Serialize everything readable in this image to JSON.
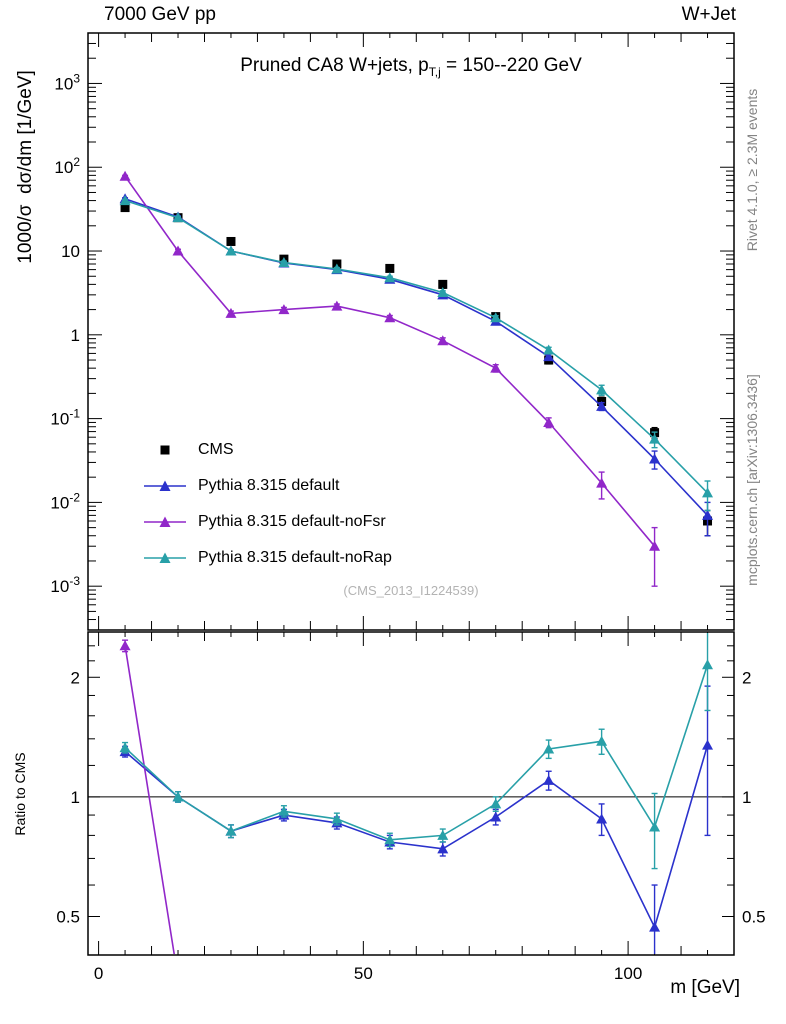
{
  "header": {
    "left": "7000 GeV pp",
    "right": "W+Jet"
  },
  "title": {
    "prefix": "Pruned CA8 W+jets, p",
    "sub": "T,j",
    "suffix": " = 150--220 GeV"
  },
  "axes": {
    "main_ylabel": "1000/σ  dσ/dm [1/GeV]",
    "ratio_ylabel": "Ratio to CMS",
    "xlabel": "m [GeV]"
  },
  "side_notes": {
    "rivet": "Rivet 4.1.0, ≥ 2.3M events",
    "mcplots": "mcplots.cern.ch [arXiv:1306.3436]"
  },
  "watermark": "(CMS_2013_I1224539)",
  "colors": {
    "frame": "#000000",
    "gray_text": "#848484",
    "watermark": "#b3b3b3"
  },
  "chart_data": {
    "type": "line",
    "title": "Pruned CA8 W+jets, p_{T,j} = 150--220 GeV",
    "xlabel": "m [GeV]",
    "x": [
      5,
      15,
      25,
      35,
      45,
      55,
      65,
      75,
      85,
      95,
      105,
      115
    ],
    "xlim": [
      -2,
      120
    ],
    "x_ticks": [
      0,
      50,
      100
    ],
    "main": {
      "scale": "log",
      "ylim": [
        0.0003,
        4000
      ],
      "ylabel": "1000/σ dσ/dm [1/GeV]"
    },
    "ratio": {
      "scale": "log",
      "ylim": [
        0.4,
        2.6
      ],
      "ticks": [
        0.5,
        1,
        2
      ],
      "tick_labels": [
        "0.5",
        "1",
        "2"
      ],
      "minor_ticks": [
        0.6,
        0.7,
        0.8,
        0.9,
        1.2,
        1.4,
        1.6,
        1.8,
        2.2,
        2.4
      ],
      "ylabel": "Ratio to CMS",
      "reference_line": 1
    },
    "series": [
      {
        "name": "CMS",
        "color": "#000000",
        "marker": "square",
        "line": false,
        "values": [
          33,
          25,
          13,
          8.0,
          7.0,
          6.2,
          4.0,
          1.65,
          0.5,
          0.16,
          0.068,
          0.006
        ],
        "errors": [
          3,
          2,
          1,
          0.6,
          0.5,
          0.5,
          0.4,
          0.15,
          0.05,
          0.02,
          0.01,
          0.002
        ]
      },
      {
        "name": "Pythia 8.315 default",
        "color": "#2b32cc",
        "marker": "triangle",
        "line": true,
        "values": [
          42,
          25.5,
          10,
          7.2,
          6.0,
          4.6,
          3.0,
          1.45,
          0.55,
          0.14,
          0.033,
          0.007
        ],
        "errors": [
          1.2,
          0.8,
          0.35,
          0.28,
          0.25,
          0.2,
          0.15,
          0.08,
          0.04,
          0.015,
          0.008,
          0.003
        ],
        "ratio": [
          1.3,
          1.0,
          0.82,
          0.9,
          0.86,
          0.77,
          0.74,
          0.89,
          1.1,
          0.88,
          0.47,
          1.35
        ],
        "ratio_errors": [
          0.04,
          0.03,
          0.03,
          0.03,
          0.03,
          0.03,
          0.03,
          0.04,
          0.06,
          0.08,
          0.13,
          0.55
        ]
      },
      {
        "name": "Pythia 8.315 default-noFsr",
        "color": "#9127c9",
        "marker": "triangle",
        "line": true,
        "values": [
          78,
          10,
          1.8,
          2.0,
          2.2,
          1.6,
          0.85,
          0.4,
          0.09,
          0.017,
          0.003,
          null
        ],
        "errors": [
          2,
          0.5,
          0.12,
          0.12,
          0.13,
          0.1,
          0.07,
          0.04,
          0.012,
          0.006,
          0.002,
          null
        ],
        "ratio": [
          2.4,
          0.35,
          null,
          null,
          null,
          null,
          null,
          null,
          null,
          null,
          null,
          null
        ],
        "ratio_errors": [
          0.08,
          0.04,
          null,
          null,
          null,
          null,
          null,
          null,
          null,
          null,
          null,
          null
        ]
      },
      {
        "name": "Pythia 8.315 default-noRap",
        "color": "#28a0a8",
        "marker": "triangle",
        "line": true,
        "values": [
          40,
          25,
          10,
          7.3,
          6.1,
          4.8,
          3.2,
          1.6,
          0.66,
          0.22,
          0.057,
          0.013
        ],
        "errors": [
          1.2,
          0.8,
          0.35,
          0.28,
          0.25,
          0.2,
          0.15,
          0.09,
          0.05,
          0.03,
          0.012,
          0.005
        ],
        "ratio": [
          1.33,
          1.0,
          0.82,
          0.92,
          0.88,
          0.78,
          0.8,
          0.96,
          1.32,
          1.38,
          0.84,
          2.15
        ],
        "ratio_errors": [
          0.04,
          0.03,
          0.03,
          0.03,
          0.03,
          0.03,
          0.03,
          0.04,
          0.07,
          0.1,
          0.18,
          0.5
        ]
      }
    ]
  }
}
